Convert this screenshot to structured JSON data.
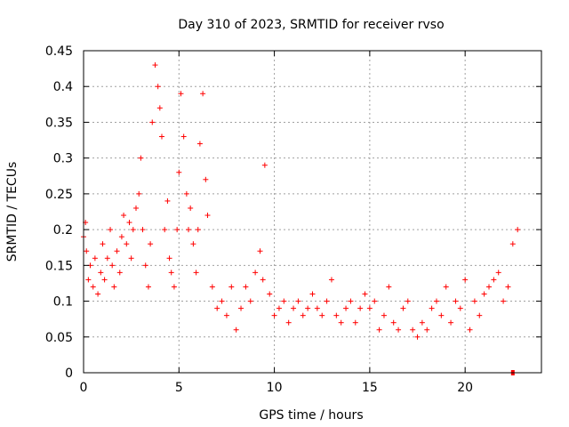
{
  "chart_data": {
    "type": "scatter",
    "title": "Day 310 of 2023, SRMTID for receiver rvso",
    "xlabel": "GPS time / hours",
    "ylabel": "SRMTID / TECUs",
    "xlim": [
      0,
      24
    ],
    "ylim": [
      0,
      0.45
    ],
    "x_ticks": [
      0,
      5,
      10,
      15,
      20
    ],
    "x_tick_labels": [
      "0",
      "5",
      "10",
      "15",
      "20"
    ],
    "y_ticks": [
      0,
      0.05,
      0.1,
      0.15,
      0.2,
      0.25,
      0.3,
      0.35,
      0.4,
      0.45
    ],
    "y_tick_labels": [
      "0",
      "0.05",
      "0.1",
      "0.15",
      "0.2",
      "0.25",
      "0.3",
      "0.35",
      "0.4",
      "0.45"
    ],
    "grid": true,
    "marker": "+",
    "color": "#ff0000",
    "series": [
      {
        "name": "SRMTID",
        "x": [
          0.0,
          0.1,
          0.15,
          0.25,
          0.35,
          0.5,
          0.6,
          0.75,
          0.9,
          1.0,
          1.1,
          1.25,
          1.4,
          1.5,
          1.6,
          1.75,
          1.9,
          2.0,
          2.1,
          2.25,
          2.4,
          2.5,
          2.6,
          2.75,
          2.9,
          3.0,
          3.1,
          3.25,
          3.4,
          3.5,
          3.6,
          3.75,
          3.9,
          4.0,
          4.1,
          4.25,
          4.4,
          4.5,
          4.6,
          4.75,
          4.9,
          5.0,
          5.1,
          5.25,
          5.4,
          5.5,
          5.6,
          5.75,
          5.9,
          6.0,
          6.1,
          6.25,
          6.4,
          6.5,
          6.75,
          7.0,
          7.25,
          7.5,
          7.75,
          8.0,
          8.25,
          8.5,
          8.75,
          9.0,
          9.25,
          9.4,
          9.5,
          9.75,
          10.0,
          10.25,
          10.5,
          10.75,
          11.0,
          11.25,
          11.5,
          11.75,
          12.0,
          12.25,
          12.5,
          12.75,
          13.0,
          13.25,
          13.5,
          13.75,
          14.0,
          14.25,
          14.5,
          14.75,
          15.0,
          15.25,
          15.5,
          15.75,
          16.0,
          16.25,
          16.5,
          16.75,
          17.0,
          17.25,
          17.5,
          17.75,
          18.0,
          18.25,
          18.5,
          18.75,
          19.0,
          19.25,
          19.5,
          19.75,
          20.0,
          20.25,
          20.5,
          20.75,
          21.0,
          21.25,
          21.5,
          21.75,
          22.0,
          22.25,
          22.5,
          22.75
        ],
        "y": [
          0.19,
          0.21,
          0.17,
          0.13,
          0.15,
          0.12,
          0.16,
          0.11,
          0.14,
          0.18,
          0.13,
          0.16,
          0.2,
          0.15,
          0.12,
          0.17,
          0.14,
          0.19,
          0.22,
          0.18,
          0.21,
          0.16,
          0.2,
          0.23,
          0.25,
          0.3,
          0.2,
          0.15,
          0.12,
          0.18,
          0.35,
          0.43,
          0.4,
          0.37,
          0.33,
          0.2,
          0.24,
          0.16,
          0.14,
          0.12,
          0.2,
          0.28,
          0.39,
          0.33,
          0.25,
          0.2,
          0.23,
          0.18,
          0.14,
          0.2,
          0.32,
          0.39,
          0.27,
          0.22,
          0.12,
          0.09,
          0.1,
          0.08,
          0.12,
          0.06,
          0.09,
          0.12,
          0.1,
          0.14,
          0.17,
          0.13,
          0.29,
          0.11,
          0.08,
          0.09,
          0.1,
          0.07,
          0.09,
          0.1,
          0.08,
          0.09,
          0.11,
          0.09,
          0.08,
          0.1,
          0.13,
          0.08,
          0.07,
          0.09,
          0.1,
          0.07,
          0.09,
          0.11,
          0.09,
          0.1,
          0.06,
          0.08,
          0.12,
          0.07,
          0.06,
          0.09,
          0.1,
          0.06,
          0.05,
          0.07,
          0.06,
          0.09,
          0.1,
          0.08,
          0.12,
          0.07,
          0.1,
          0.09,
          0.13,
          0.06,
          0.1,
          0.08,
          0.11,
          0.12,
          0.13,
          0.14,
          0.1,
          0.12,
          0.18,
          0.2
        ]
      }
    ],
    "special_points": [
      {
        "x": 22.5,
        "y": 0.0,
        "marker": "square"
      }
    ]
  }
}
